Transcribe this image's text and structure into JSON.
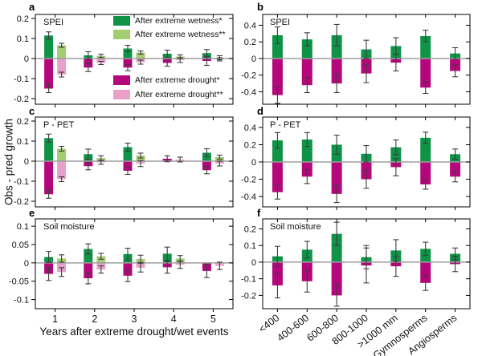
{
  "figure": {
    "ylabel": "Obs - pred growth",
    "xlabel": "Years after extreme drought/wet events",
    "panel_letters": [
      "a",
      "b",
      "c",
      "d",
      "e",
      "f"
    ]
  },
  "legend": {
    "items": [
      {
        "label": "After extreme wetness*",
        "color": "#0f9347"
      },
      {
        "label": "After extreme wetness**",
        "color": "#a3cd71"
      },
      {
        "label": "After extreme drought*",
        "color": "#b5077c"
      },
      {
        "label": "After extreme drought**",
        "color": "#e9a1ca"
      }
    ]
  },
  "colors": {
    "wet": "#0f9347",
    "wet2": "#a3cd71",
    "drought": "#b5077c",
    "drought2": "#e9a1ca",
    "zero": "#9e9e9e",
    "err": "#3c3c3c",
    "axis": "#000000"
  },
  "chart_data": [
    {
      "id": "a",
      "type": "bar",
      "title": "SPEI",
      "paired": true,
      "xlabels": "none",
      "ylim": [
        -0.228,
        0.22
      ],
      "yticks": [
        0.2,
        0.1,
        0,
        -0.1,
        -0.2
      ],
      "categories": [
        "1",
        "2",
        "3",
        "4",
        "5"
      ],
      "groups": [
        {
          "wet": 0.115,
          "wet_err": 0.018,
          "drought": -0.15,
          "drought_err": 0.02,
          "wet2": 0.066,
          "wet2_err": 0.01,
          "drought2": -0.08,
          "drought2_err": 0.012
        },
        {
          "wet": 0.016,
          "wet_err": 0.018,
          "drought": -0.045,
          "drought_err": 0.02,
          "wet2": 0.013,
          "wet2_err": 0.008,
          "drought2": -0.022,
          "drought2_err": 0.008
        },
        {
          "wet": 0.05,
          "wet_err": 0.016,
          "drought": -0.045,
          "drought_err": 0.016,
          "wet2": 0.03,
          "wet2_err": 0.008,
          "drought2": -0.018,
          "drought2_err": 0.01
        },
        {
          "wet": 0.024,
          "wet_err": 0.018,
          "drought": -0.022,
          "drought_err": 0.016,
          "wet2": 0.01,
          "wet2_err": 0.008,
          "drought2": -0.008,
          "drought2_err": 0.012
        },
        {
          "wet": 0.027,
          "wet_err": 0.018,
          "drought": -0.012,
          "drought_err": 0.022,
          "wet2": 0.004,
          "wet2_err": 0.01,
          "drought2": -0.004,
          "drought2_err": 0.008
        }
      ]
    },
    {
      "id": "b",
      "type": "bar",
      "title": "SPEI",
      "paired": false,
      "xlabels": "none",
      "ylim": [
        -0.55,
        0.53
      ],
      "yticks": [
        0.4,
        0.2,
        0,
        -0.2,
        -0.4
      ],
      "categories": [
        "<400",
        "400-600",
        "600-800",
        "800-1000",
        ">1000 mm",
        "Gymnosperms",
        "Angiosperms"
      ],
      "groups": [
        {
          "wet": 0.28,
          "wet_err": 0.1,
          "drought": -0.44,
          "drought_err": 0.1
        },
        {
          "wet": 0.23,
          "wet_err": 0.08,
          "drought": -0.32,
          "drought_err": 0.09
        },
        {
          "wet": 0.28,
          "wet_err": 0.13,
          "drought": -0.3,
          "drought_err": 0.11
        },
        {
          "wet": 0.11,
          "wet_err": 0.11,
          "drought": -0.18,
          "drought_err": 0.11
        },
        {
          "wet": 0.15,
          "wet_err": 0.1,
          "drought": -0.05,
          "drought_err": 0.1
        },
        {
          "wet": 0.27,
          "wet_err": 0.07,
          "drought": -0.35,
          "drought_err": 0.07
        },
        {
          "wet": 0.06,
          "wet_err": 0.07,
          "drought": -0.15,
          "drought_err": 0.07
        }
      ]
    },
    {
      "id": "c",
      "type": "bar",
      "title": "P - PET",
      "paired": true,
      "xlabels": "none",
      "ylim": [
        -0.228,
        0.22
      ],
      "yticks": [
        0.2,
        0.1,
        0,
        -0.1,
        -0.2
      ],
      "categories": [
        "1",
        "2",
        "3",
        "4",
        "5"
      ],
      "groups": [
        {
          "wet": 0.115,
          "wet_err": 0.02,
          "drought": -0.165,
          "drought_err": 0.02,
          "wet2": 0.062,
          "wet2_err": 0.012,
          "drought2": -0.09,
          "drought2_err": 0.012
        },
        {
          "wet": 0.035,
          "wet_err": 0.025,
          "drought": -0.025,
          "drought_err": 0.018,
          "wet2": 0.015,
          "wet2_err": 0.012,
          "drought2": -0.006,
          "drought2_err": 0.01
        },
        {
          "wet": 0.07,
          "wet_err": 0.02,
          "drought": -0.048,
          "drought_err": 0.018,
          "wet2": 0.028,
          "wet2_err": 0.012,
          "drought2": -0.012,
          "drought2_err": 0.015
        },
        {
          "wet": null,
          "wet_err": null,
          "drought": 0.012,
          "drought_err": 0.015,
          "wet2": null,
          "wet2_err": null,
          "drought2": 0.008,
          "drought2_err": 0.012
        },
        {
          "wet": 0.042,
          "wet_err": 0.02,
          "drought": -0.045,
          "drought_err": 0.018,
          "wet2": 0.02,
          "wet2_err": 0.01,
          "drought2": -0.012,
          "drought2_err": 0.012
        }
      ]
    },
    {
      "id": "d",
      "type": "bar",
      "title": "P - PET",
      "paired": false,
      "xlabels": "none",
      "ylim": [
        -0.52,
        0.52
      ],
      "yticks": [
        0.4,
        0.2,
        0,
        -0.2,
        -0.4
      ],
      "categories": [
        "<400",
        "400-600",
        "600-800",
        "800-1000",
        ">1000 mm",
        "Gymnosperms",
        "Angiosperms"
      ],
      "groups": [
        {
          "wet": 0.25,
          "wet_err": 0.09,
          "drought": -0.35,
          "drought_err": 0.08
        },
        {
          "wet": 0.26,
          "wet_err": 0.08,
          "drought": -0.17,
          "drought_err": 0.08
        },
        {
          "wet": 0.2,
          "wet_err": 0.11,
          "drought": -0.37,
          "drought_err": 0.1
        },
        {
          "wet": 0.095,
          "wet_err": 0.095,
          "drought": -0.2,
          "drought_err": 0.105
        },
        {
          "wet": 0.17,
          "wet_err": 0.085,
          "drought": -0.06,
          "drought_err": 0.1
        },
        {
          "wet": 0.28,
          "wet_err": 0.065,
          "drought": -0.26,
          "drought_err": 0.055
        },
        {
          "wet": 0.09,
          "wet_err": 0.06,
          "drought": -0.17,
          "drought_err": 0.06
        }
      ]
    },
    {
      "id": "e",
      "type": "bar",
      "title": "Soil moisture",
      "paired": true,
      "xlabels": "horizontal",
      "ylim": [
        -0.125,
        0.12
      ],
      "yticks": [
        0.1,
        0.05,
        0,
        -0.05,
        -0.1
      ],
      "categories": [
        "1",
        "2",
        "3",
        "4",
        "5"
      ],
      "groups": [
        {
          "wet": 0.016,
          "wet_err": 0.015,
          "drought": -0.03,
          "drought_err": 0.018,
          "wet2": 0.012,
          "wet2_err": 0.01,
          "drought2": -0.025,
          "drought2_err": 0.012
        },
        {
          "wet": 0.038,
          "wet_err": 0.014,
          "drought": -0.042,
          "drought_err": 0.015,
          "wet2": 0.018,
          "wet2_err": 0.008,
          "drought2": -0.018,
          "drought2_err": 0.01
        },
        {
          "wet": 0.024,
          "wet_err": 0.016,
          "drought": -0.035,
          "drought_err": 0.016,
          "wet2": 0.011,
          "wet2_err": 0.01,
          "drought2": -0.013,
          "drought2_err": 0.012
        },
        {
          "wet": 0.025,
          "wet_err": 0.018,
          "drought": -0.012,
          "drought_err": 0.016,
          "wet2": 0.012,
          "wet2_err": 0.008,
          "drought2": -0.005,
          "drought2_err": 0.01
        },
        {
          "wet": null,
          "wet_err": null,
          "drought": -0.022,
          "drought_err": 0.018,
          "wet2": null,
          "wet2_err": null,
          "drought2": -0.008,
          "drought2_err": 0.01
        }
      ]
    },
    {
      "id": "f",
      "type": "bar",
      "title": "Soil moisture",
      "paired": false,
      "xlabels": "rotated",
      "ylim": [
        -0.28,
        0.26
      ],
      "yticks": [
        0.2,
        0.1,
        0,
        -0.1,
        -0.2
      ],
      "categories": [
        "<400",
        "400-600",
        "600-800",
        "800-1000",
        ">1000 mm",
        "Gymnosperms",
        "Angiosperms"
      ],
      "groups": [
        {
          "wet": 0.035,
          "wet_err": 0.06,
          "drought": -0.14,
          "drought_err": 0.075
        },
        {
          "wet": 0.075,
          "wet_err": 0.05,
          "drought": -0.115,
          "drought_err": 0.065
        },
        {
          "wet": 0.17,
          "wet_err": 0.07,
          "drought": -0.2,
          "drought_err": 0.065
        },
        {
          "wet": 0.03,
          "wet_err": 0.07,
          "drought": -0.02,
          "drought_err": 0.105
        },
        {
          "wet": 0.07,
          "wet_err": 0.065,
          "drought": -0.025,
          "drought_err": 0.06
        },
        {
          "wet": 0.08,
          "wet_err": 0.04,
          "drought": -0.125,
          "drought_err": 0.045
        },
        {
          "wet": 0.05,
          "wet_err": 0.035,
          "drought": -0.012,
          "drought_err": 0.045
        }
      ]
    }
  ]
}
